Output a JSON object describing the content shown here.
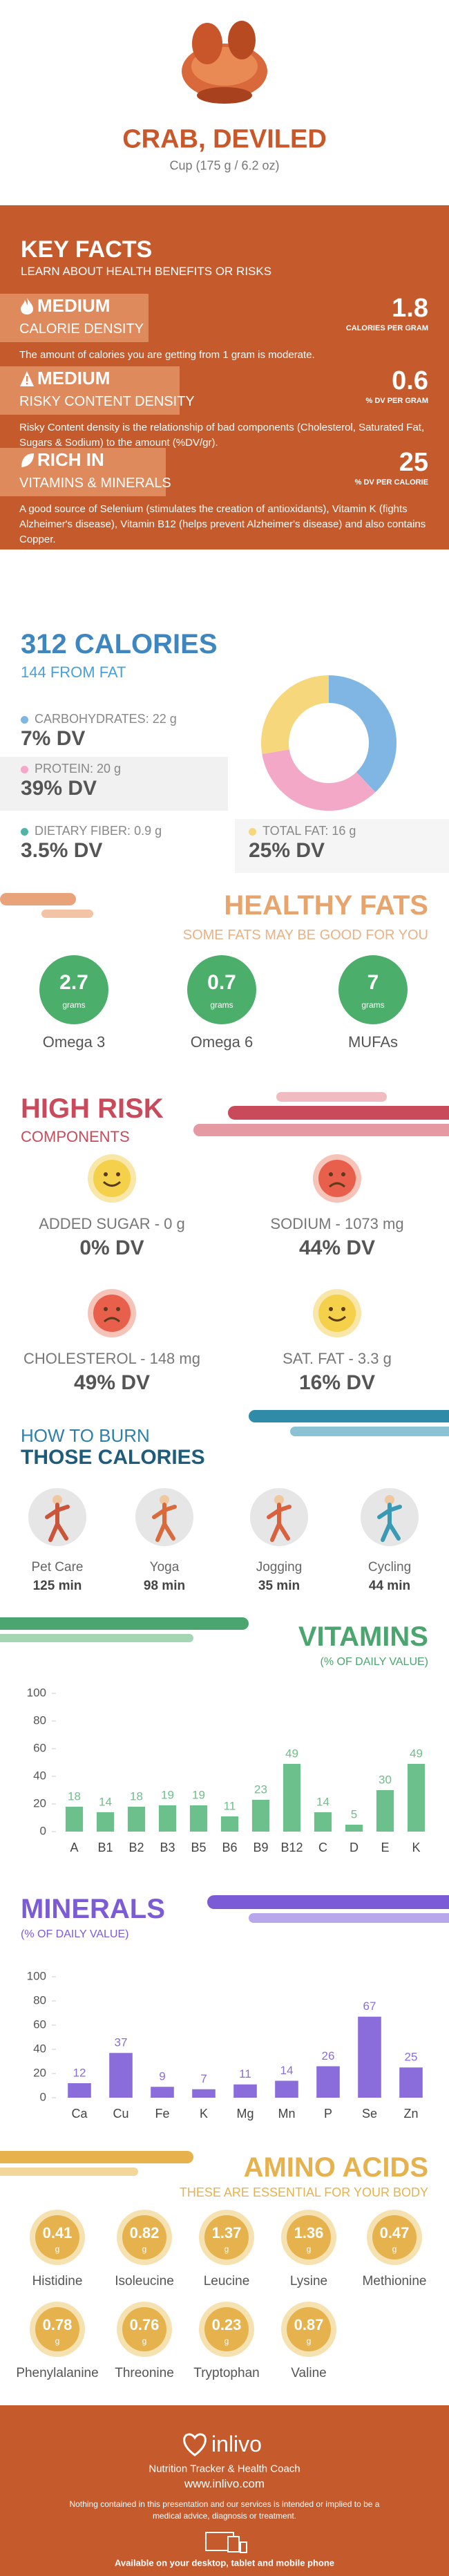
{
  "header": {
    "title": "CRAB, DEVILED",
    "serving": "Cup (175 g / 6.2 oz)"
  },
  "key_facts": {
    "title": "KEY FACTS",
    "subtitle": "LEARN ABOUT HEALTH BENEFITS OR RISKS",
    "facts": [
      {
        "level": "MEDIUM",
        "label": "CALORIE DENSITY",
        "value": 1.8,
        "unit": "CALORIES PER GRAM",
        "text": "The amount of calories you are getting from 1 gram is moderate."
      },
      {
        "level": "MEDIUM",
        "label": "RISKY CONTENT DENSITY",
        "value": 0.6,
        "unit": "% DV PER GRAM",
        "text": "Risky Content density is the relationship of bad components (Cholesterol, Saturated Fat, Sugars & Sodium) to the amount (%DV/gr)."
      },
      {
        "level": "RICH IN",
        "label": "VITAMINS & MINERALS",
        "value": 25,
        "unit": "% DV PER CALORIE",
        "text": "A good source of Selenium (stimulates the creation of antioxidants), Vitamin K (fights Alzheimer's disease), Vitamin B12 (helps prevent Alzheimer's disease) and also contains Copper."
      }
    ]
  },
  "calories": {
    "title": "312 CALORIES",
    "from_fat": "144 FROM FAT",
    "fiber": {
      "name": "DIETARY FIBER:",
      "amount": "0.9 g",
      "dv": "3.5% DV",
      "color": "#4db6a4"
    }
  },
  "chart_data": [
    {
      "type": "pie",
      "categories": [
        "CARBOHYDRATES:",
        "PROTEIN:",
        "TOTAL FAT:"
      ],
      "values": [
        22,
        20,
        16
      ],
      "value_labels": [
        "22 g",
        "20 g",
        "16 g"
      ],
      "dv_labels": [
        "7% DV",
        "39% DV",
        "25% DV"
      ],
      "colors": [
        "#7fb6e3",
        "#f4a8c8",
        "#f7d77c"
      ]
    },
    {
      "type": "bar",
      "title": "VITAMINS",
      "subtitle": "(% OF DAILY VALUE)",
      "categories": [
        "A",
        "B1",
        "B2",
        "B3",
        "B5",
        "B6",
        "B9",
        "B12",
        "C",
        "D",
        "E",
        "K"
      ],
      "values": [
        18,
        14,
        18,
        19,
        19,
        11,
        23,
        49,
        14,
        5,
        30,
        49
      ],
      "color": "#6cc08b",
      "ylim": [
        0,
        100
      ],
      "yticks": [
        0,
        20,
        40,
        60,
        80,
        100
      ],
      "grid": false
    },
    {
      "type": "bar",
      "title": "MINERALS",
      "subtitle": "(% OF DAILY VALUE)",
      "categories": [
        "Ca",
        "Cu",
        "Fe",
        "K",
        "Mg",
        "Mn",
        "P",
        "Se",
        "Zn"
      ],
      "values": [
        12,
        37,
        9,
        7,
        11,
        14,
        26,
        67,
        25
      ],
      "color": "#8a6ddb",
      "ylim": [
        0,
        100
      ],
      "yticks": [
        0,
        20,
        40,
        60,
        80,
        100
      ],
      "grid": false
    }
  ],
  "healthy_fats": {
    "title": "HEALTHY FATS",
    "subtitle": "SOME FATS MAY BE GOOD FOR YOU",
    "unit": "grams",
    "items": [
      {
        "name": "Omega 3",
        "value": 2.7
      },
      {
        "name": "Omega 6",
        "value": 0.7
      },
      {
        "name": "MUFAs",
        "value": 7
      }
    ]
  },
  "high_risk": {
    "title": "HIGH RISK",
    "subtitle": "COMPONENTS",
    "items": [
      {
        "label": "ADDED SUGAR - 0 g",
        "dv": "0% DV",
        "mood": "happy"
      },
      {
        "label": "SODIUM - 1073 mg",
        "dv": "44% DV",
        "mood": "sad"
      },
      {
        "label": "CHOLESTEROL - 148 mg",
        "dv": "49% DV",
        "mood": "sad"
      },
      {
        "label": "SAT. FAT - 3.3 g",
        "dv": "16% DV",
        "mood": "happy"
      }
    ]
  },
  "burn": {
    "title": "HOW TO BURN",
    "subtitle": "THOSE CALORIES",
    "activities": [
      {
        "name": "Pet Care",
        "time": "125 min"
      },
      {
        "name": "Yoga",
        "time": "98 min"
      },
      {
        "name": "Jogging",
        "time": "35 min"
      },
      {
        "name": "Cycling",
        "time": "44 min"
      }
    ]
  },
  "amino_acids": {
    "title": "AMINO ACIDS",
    "subtitle": "THESE ARE ESSENTIAL FOR YOUR BODY",
    "unit": "g",
    "items": [
      {
        "name": "Histidine",
        "value": 0.41
      },
      {
        "name": "Isoleucine",
        "value": 0.82
      },
      {
        "name": "Leucine",
        "value": 1.37
      },
      {
        "name": "Lysine",
        "value": 1.36
      },
      {
        "name": "Methionine",
        "value": 0.47
      },
      {
        "name": "Phenylalanine",
        "value": 0.78
      },
      {
        "name": "Threonine",
        "value": 0.76
      },
      {
        "name": "Tryptophan",
        "value": 0.23
      },
      {
        "name": "Valine",
        "value": 0.87
      }
    ]
  },
  "footer": {
    "brand": "inlivo",
    "tagline": "Nutrition Tracker & Health Coach",
    "url": "www.inlivo.com",
    "disclaimer": "Nothing contained in this presentation and our services is intended or implied to be a medical advice, diagnosis or treatment.",
    "available": "Available on your desktop, tablet and mobile phone"
  }
}
